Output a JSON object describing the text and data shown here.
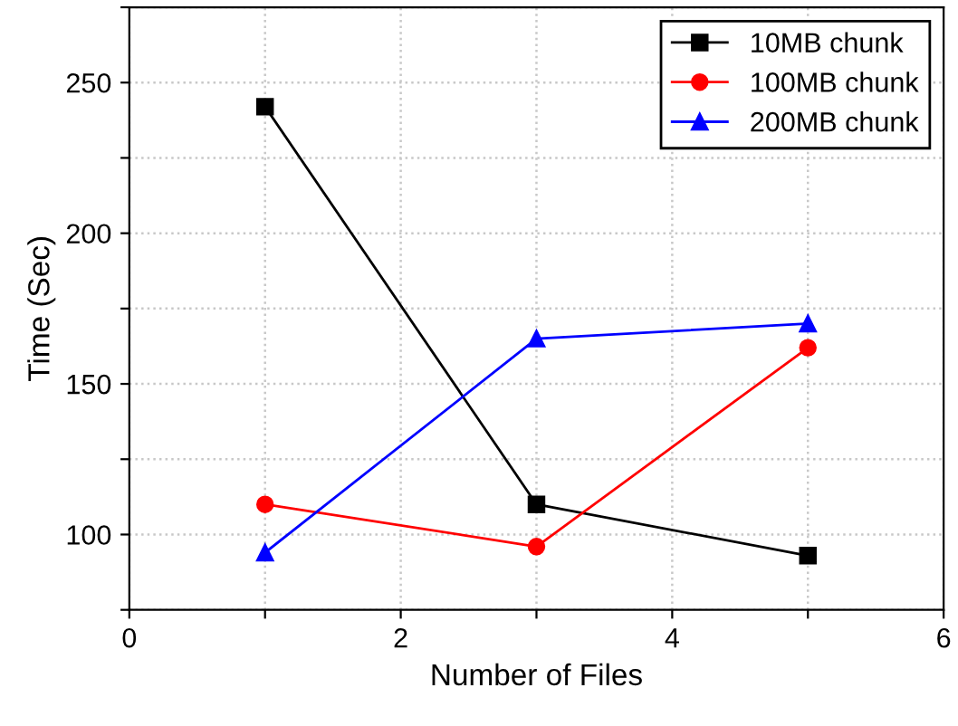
{
  "chart_data": {
    "type": "line",
    "xlabel": "Number of Files",
    "ylabel": "Time (Sec)",
    "x": [
      1,
      3,
      5
    ],
    "series": [
      {
        "name": "10MB chunk",
        "color": "#000000",
        "marker": "square",
        "values": [
          242,
          110,
          93
        ]
      },
      {
        "name": "100MB chunk",
        "color": "#ff0000",
        "marker": "circle",
        "values": [
          110,
          96,
          162
        ]
      },
      {
        "name": "200MB chunk",
        "color": "#0000ff",
        "marker": "triangle",
        "values": [
          94,
          165,
          170
        ]
      }
    ],
    "xlim": [
      0,
      6
    ],
    "ylim": [
      75,
      275
    ],
    "xticks": [
      0,
      {
        "value": 1,
        "label": null
      },
      2,
      {
        "value": 3,
        "label": null
      },
      4,
      {
        "value": 5,
        "label": null
      },
      6
    ],
    "yticks": [
      {
        "value": 75,
        "label": null
      },
      100,
      {
        "value": 125,
        "label": null
      },
      150,
      {
        "value": 175,
        "label": null
      },
      200,
      {
        "value": 225,
        "label": null
      },
      250,
      {
        "value": 275,
        "label": null
      }
    ],
    "grid": true,
    "legend": "top right",
    "line_style": "solid"
  }
}
